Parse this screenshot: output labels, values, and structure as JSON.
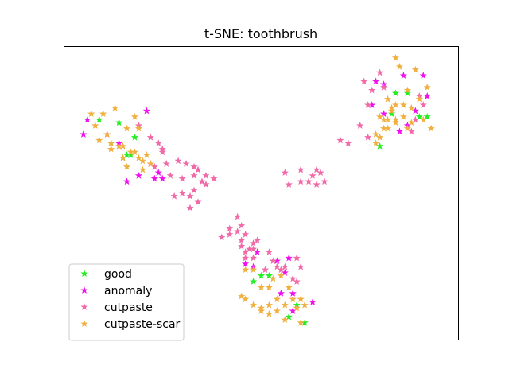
{
  "chart_data": {
    "type": "scatter",
    "title": "t-SNE: toothbrush",
    "xlabel": "",
    "ylabel": "",
    "xlim": [
      0,
      100
    ],
    "ylim": [
      0,
      100
    ],
    "axis_ticks": "hidden",
    "grid": false,
    "legend_position": "lower-left",
    "marker": "star",
    "series": [
      {
        "name": "good",
        "color": "#22ee22",
        "points": [
          [
            9,
            75
          ],
          [
            14,
            74
          ],
          [
            12,
            67
          ],
          [
            16,
            63
          ],
          [
            15,
            62
          ],
          [
            17,
            63
          ],
          [
            18,
            69
          ],
          [
            84,
            84
          ],
          [
            87,
            84
          ],
          [
            83,
            77
          ],
          [
            90,
            76
          ],
          [
            92,
            76
          ],
          [
            80,
            66
          ],
          [
            50,
            22
          ],
          [
            48,
            20
          ],
          [
            52,
            22
          ],
          [
            59,
            12
          ],
          [
            57,
            8
          ],
          [
            61,
            6
          ]
        ]
      },
      {
        "name": "anomaly",
        "color": "#ee11ee",
        "points": [
          [
            6,
            75
          ],
          [
            5,
            70
          ],
          [
            11,
            70
          ],
          [
            14,
            67
          ],
          [
            21,
            78
          ],
          [
            22,
            60
          ],
          [
            24,
            57
          ],
          [
            25,
            55
          ],
          [
            23,
            55
          ],
          [
            16,
            54
          ],
          [
            19,
            56
          ],
          [
            79,
            88
          ],
          [
            81,
            87
          ],
          [
            86,
            90
          ],
          [
            91,
            90
          ],
          [
            92,
            83
          ],
          [
            89,
            78
          ],
          [
            87,
            73
          ],
          [
            85,
            71
          ],
          [
            78,
            80
          ],
          [
            81,
            77
          ],
          [
            49,
            30
          ],
          [
            48,
            25
          ],
          [
            54,
            27
          ],
          [
            57,
            28
          ],
          [
            46,
            26
          ],
          [
            55,
            16
          ],
          [
            58,
            16
          ],
          [
            63,
            13
          ],
          [
            58,
            10
          ],
          [
            56,
            23
          ]
        ]
      },
      {
        "name": "cutpaste",
        "color": "#f06aa8",
        "points": [
          [
            19,
            73
          ],
          [
            22,
            69
          ],
          [
            24,
            67
          ],
          [
            25,
            64
          ],
          [
            29,
            61
          ],
          [
            31,
            60
          ],
          [
            27,
            56
          ],
          [
            30,
            55
          ],
          [
            33,
            56
          ],
          [
            35,
            54
          ],
          [
            33,
            51
          ],
          [
            32,
            49
          ],
          [
            30,
            50
          ],
          [
            28,
            49
          ],
          [
            32,
            45
          ],
          [
            34,
            47
          ],
          [
            34,
            58
          ],
          [
            36,
            56
          ],
          [
            33,
            59
          ],
          [
            38,
            55
          ],
          [
            36,
            53
          ],
          [
            26,
            60
          ],
          [
            23,
            59
          ],
          [
            25,
            65
          ],
          [
            64,
            58
          ],
          [
            65,
            57
          ],
          [
            63,
            56
          ],
          [
            60,
            58
          ],
          [
            62,
            54
          ],
          [
            66,
            54
          ],
          [
            64,
            53
          ],
          [
            60,
            54
          ],
          [
            57,
            53
          ],
          [
            56,
            57
          ],
          [
            70,
            68
          ],
          [
            72,
            67
          ],
          [
            75,
            73
          ],
          [
            77,
            80
          ],
          [
            78,
            85
          ],
          [
            81,
            86
          ],
          [
            76,
            88
          ],
          [
            80,
            91
          ],
          [
            90,
            83
          ],
          [
            91,
            80
          ],
          [
            89,
            75
          ],
          [
            88,
            71
          ],
          [
            77,
            69
          ],
          [
            44,
            42
          ],
          [
            45,
            39
          ],
          [
            42,
            36
          ],
          [
            45,
            34
          ],
          [
            46,
            36
          ],
          [
            40,
            35
          ],
          [
            42,
            38
          ],
          [
            44,
            37
          ],
          [
            45,
            32
          ],
          [
            46,
            30
          ],
          [
            47,
            31
          ],
          [
            48,
            31
          ],
          [
            48,
            33
          ],
          [
            49,
            34
          ],
          [
            52,
            30
          ],
          [
            53,
            27
          ],
          [
            55,
            24
          ],
          [
            51,
            24
          ],
          [
            58,
            21
          ],
          [
            60,
            25
          ],
          [
            59,
            28
          ],
          [
            54,
            25
          ],
          [
            56,
            25
          ],
          [
            59,
            20
          ],
          [
            48,
            28
          ],
          [
            46,
            28
          ]
        ]
      },
      {
        "name": "cutpaste-scar",
        "color": "#f0b040",
        "points": [
          [
            7,
            77
          ],
          [
            8,
            73
          ],
          [
            9,
            68
          ],
          [
            11,
            70
          ],
          [
            12,
            67
          ],
          [
            14,
            66
          ],
          [
            15,
            66
          ],
          [
            16,
            72
          ],
          [
            18,
            76
          ],
          [
            19,
            72
          ],
          [
            13,
            79
          ],
          [
            10,
            77
          ],
          [
            12,
            65
          ],
          [
            17,
            64
          ],
          [
            19,
            62
          ],
          [
            20,
            61
          ],
          [
            22,
            60
          ],
          [
            18,
            64
          ],
          [
            16,
            59
          ],
          [
            15,
            62
          ],
          [
            21,
            63
          ],
          [
            20,
            58
          ],
          [
            84,
            96
          ],
          [
            85,
            93
          ],
          [
            89,
            92
          ],
          [
            92,
            86
          ],
          [
            87,
            85
          ],
          [
            90,
            82
          ],
          [
            88,
            79
          ],
          [
            86,
            80
          ],
          [
            84,
            80
          ],
          [
            82,
            82
          ],
          [
            83,
            79
          ],
          [
            80,
            76
          ],
          [
            81,
            75
          ],
          [
            84,
            75
          ],
          [
            86,
            76
          ],
          [
            88,
            74
          ],
          [
            91,
            75
          ],
          [
            93,
            72
          ],
          [
            87,
            72
          ],
          [
            84,
            74
          ],
          [
            82,
            72
          ],
          [
            80,
            69
          ],
          [
            79,
            67
          ],
          [
            79,
            70
          ],
          [
            81,
            72
          ],
          [
            82,
            75
          ],
          [
            83,
            78
          ],
          [
            46,
            24
          ],
          [
            48,
            24
          ],
          [
            50,
            18
          ],
          [
            52,
            18
          ],
          [
            53,
            21
          ],
          [
            55,
            22
          ],
          [
            54,
            14
          ],
          [
            56,
            12
          ],
          [
            58,
            14
          ],
          [
            59,
            11
          ],
          [
            61,
            12
          ],
          [
            60,
            6
          ],
          [
            56,
            7
          ],
          [
            54,
            10
          ],
          [
            52,
            12
          ],
          [
            50,
            11
          ],
          [
            48,
            12
          ],
          [
            46,
            14
          ],
          [
            45,
            15
          ],
          [
            57,
            18
          ],
          [
            50,
            10
          ],
          [
            52,
            9
          ],
          [
            60,
            14
          ]
        ]
      }
    ]
  }
}
